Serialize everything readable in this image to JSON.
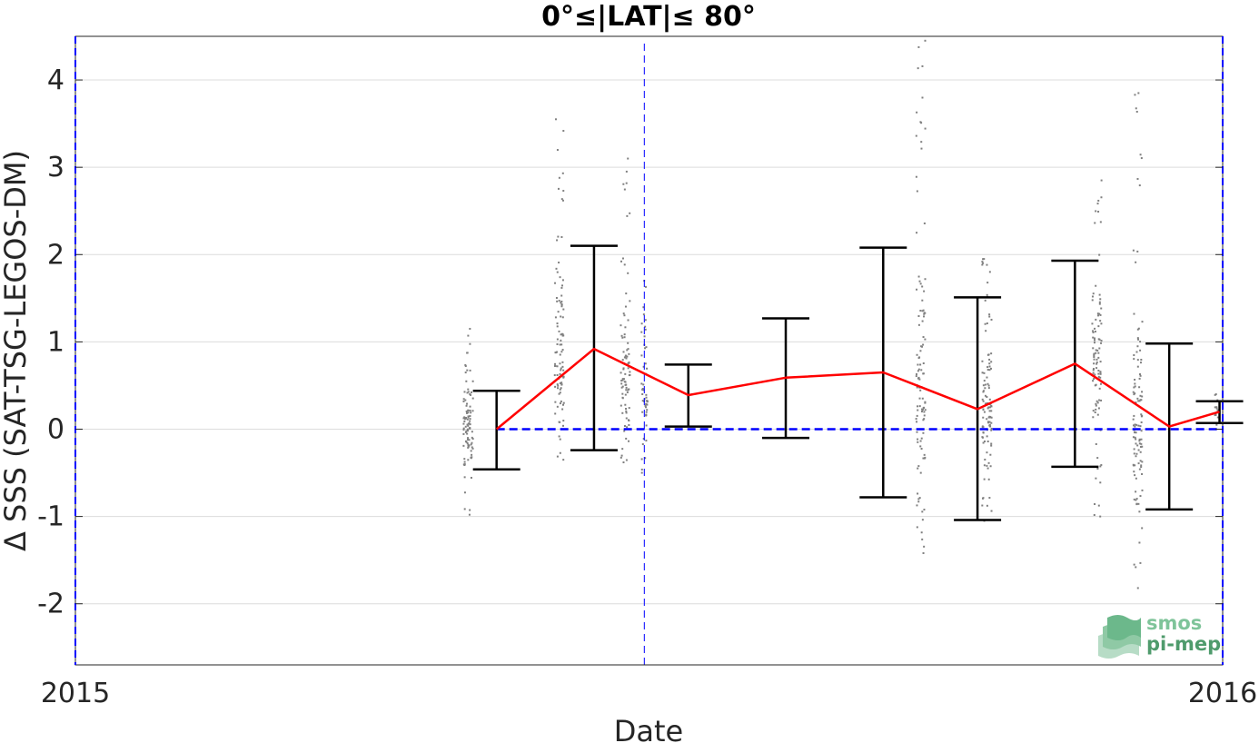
{
  "chart_data": {
    "type": "line",
    "title": "0°≤|LAT|≤ 80°",
    "xlabel": "Date",
    "ylabel": "Δ SSS (SAT-TSG-LEGOS-DM)",
    "xlim": [
      "2015-01-01",
      "2016-01-01"
    ],
    "ylim": [
      -2.7,
      4.5
    ],
    "xticks": [
      {
        "label": "2015",
        "value": "2015-01-01"
      },
      {
        "label": "2016",
        "value": "2016-01-01"
      }
    ],
    "yticks": [
      -2,
      -1,
      0,
      1,
      2,
      3,
      4
    ],
    "grid": true,
    "colors": {
      "mean_line": "#ff0000",
      "zero_line": "#0000ff",
      "error_bar": "#000000",
      "scatter": "#808080",
      "vline": "#0000ff"
    },
    "reference_lines": {
      "zero_line_y": 0,
      "zero_line_x_range": [
        "2015-05-15",
        "2015-12-31"
      ],
      "vertical_line_x": "2015-07-01"
    },
    "series": [
      {
        "type": "line-errorbar",
        "x": [
          "2015-05-15",
          "2015-06-15",
          "2015-07-15",
          "2015-08-15",
          "2015-09-15",
          "2015-10-15",
          "2015-11-15",
          "2015-12-15",
          "2015-12-31"
        ],
        "y": [
          0.0,
          0.92,
          0.39,
          0.59,
          0.65,
          0.23,
          0.75,
          0.03,
          0.2
        ],
        "lower": [
          -0.46,
          -0.24,
          0.03,
          -0.1,
          -0.78,
          -1.04,
          -0.43,
          -0.92,
          0.07
        ],
        "upper": [
          0.44,
          2.1,
          0.74,
          1.27,
          2.08,
          1.51,
          1.93,
          0.98,
          0.32
        ]
      }
    ],
    "scatter_clusters": [
      {
        "x": "2015-05-06",
        "x_spread_days": 3,
        "y_min": -0.98,
        "y_max": 1.15,
        "y_center": 0.0,
        "n": 100
      },
      {
        "x": "2015-06-04",
        "x_spread_days": 3,
        "y_min": -0.35,
        "y_max": 3.55,
        "y_center": 0.9,
        "n": 100
      },
      {
        "x": "2015-06-25",
        "x_spread_days": 3,
        "y_min": -0.38,
        "y_max": 3.1,
        "y_center": 0.6,
        "n": 90
      },
      {
        "x": "2015-07-01",
        "x_spread_days": 2,
        "y_min": -0.5,
        "y_max": 1.7,
        "y_center": 0.4,
        "n": 55
      },
      {
        "x": "2015-09-27",
        "x_spread_days": 3,
        "y_min": -1.42,
        "y_max": 4.45,
        "y_center": 0.5,
        "n": 110
      },
      {
        "x": "2015-10-18",
        "x_spread_days": 3,
        "y_min": -1.05,
        "y_max": 1.95,
        "y_center": 0.2,
        "n": 110
      },
      {
        "x": "2015-11-22",
        "x_spread_days": 3,
        "y_min": -1.0,
        "y_max": 2.85,
        "y_center": 0.7,
        "n": 100
      },
      {
        "x": "2015-12-05",
        "x_spread_days": 3,
        "y_min": -1.82,
        "y_max": 3.85,
        "y_center": 0.0,
        "n": 110
      },
      {
        "x": "2015-12-30",
        "x_spread_days": 1,
        "y_min": 0.05,
        "y_max": 0.4,
        "y_center": 0.2,
        "n": 15
      }
    ]
  },
  "logo": {
    "line1": "smos",
    "line2": "pi-mep"
  }
}
